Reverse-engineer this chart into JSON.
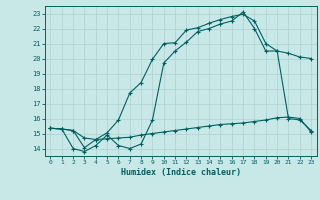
{
  "bg_color": "#c8e8e8",
  "grid_color": "#aed4d4",
  "line_color": "#006060",
  "xlabel": "Humidex (Indice chaleur)",
  "xlim": [
    -0.5,
    23.5
  ],
  "ylim": [
    13.5,
    23.5
  ],
  "yticks": [
    14,
    15,
    16,
    17,
    18,
    19,
    20,
    21,
    22,
    23
  ],
  "xticks": [
    0,
    1,
    2,
    3,
    4,
    5,
    6,
    7,
    8,
    9,
    10,
    11,
    12,
    13,
    14,
    15,
    16,
    17,
    18,
    19,
    20,
    21,
    22,
    23
  ],
  "line1_x": [
    0,
    1,
    2,
    3,
    4,
    5,
    6,
    7,
    8,
    9,
    10,
    11,
    12,
    13,
    14,
    15,
    16,
    17,
    18,
    19,
    20,
    21,
    22,
    23
  ],
  "line1_y": [
    15.35,
    15.3,
    14.0,
    13.8,
    14.2,
    14.9,
    14.2,
    14.0,
    14.3,
    15.9,
    19.7,
    20.5,
    21.1,
    21.8,
    22.0,
    22.3,
    22.5,
    23.1,
    22.0,
    20.5,
    20.5,
    16.0,
    15.9,
    15.2
  ],
  "line2_x": [
    0,
    1,
    2,
    3,
    4,
    5,
    6,
    7,
    8,
    9,
    10,
    11,
    12,
    13,
    14,
    15,
    16,
    17,
    18,
    19,
    20,
    21,
    22,
    23
  ],
  "line2_y": [
    15.35,
    15.3,
    15.2,
    14.7,
    14.6,
    14.65,
    14.7,
    14.75,
    14.9,
    15.0,
    15.1,
    15.2,
    15.3,
    15.4,
    15.5,
    15.6,
    15.65,
    15.7,
    15.8,
    15.9,
    16.05,
    16.1,
    16.0,
    15.1
  ],
  "line3_x": [
    0,
    1,
    2,
    3,
    4,
    5,
    6,
    7,
    8,
    9,
    10,
    11,
    12,
    13,
    14,
    15,
    16,
    17,
    18,
    19,
    20,
    21,
    22,
    23
  ],
  "line3_y": [
    15.35,
    15.3,
    15.2,
    14.05,
    14.6,
    15.05,
    15.9,
    17.7,
    18.4,
    19.95,
    21.0,
    21.05,
    21.9,
    22.05,
    22.35,
    22.6,
    22.8,
    22.95,
    22.5,
    21.0,
    20.5,
    20.35,
    20.1,
    20.0
  ]
}
